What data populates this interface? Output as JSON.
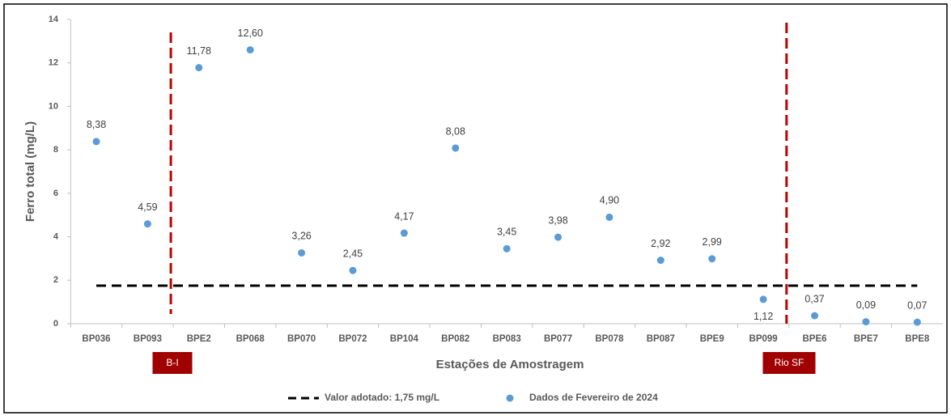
{
  "chart_data": {
    "type": "scatter",
    "y_label": "Ferro total (mg/L)",
    "x_label": "Estações de Amostragem",
    "categories": [
      "BP036",
      "BP093",
      "BPE2",
      "BP068",
      "BP070",
      "BP072",
      "BP104",
      "BP082",
      "BP083",
      "BP077",
      "BP078",
      "BP087",
      "BPE9",
      "BP099",
      "BPE6",
      "BPE7",
      "BPE8"
    ],
    "series": [
      {
        "name": "Dados de Fevereiro de 2024",
        "color": "#5b9bd5",
        "values": [
          8.38,
          4.59,
          11.78,
          12.6,
          3.26,
          2.45,
          4.17,
          8.08,
          3.45,
          3.98,
          4.9,
          2.92,
          2.99,
          1.12,
          0.37,
          0.09,
          0.07
        ],
        "value_labels": [
          "8,38",
          "4,59",
          "11,78",
          "12,60",
          "3,26",
          "2,45",
          "4,17",
          "8,08",
          "3,45",
          "3,98",
          "4,90",
          "2,92",
          "2,99",
          "1,12",
          "0,37",
          "0,09",
          "0,07"
        ]
      }
    ],
    "reference_line": {
      "name": "Valor adotado: 1,75 mg/L",
      "value": 1.75,
      "color": "#000000"
    },
    "annotations": [
      {
        "label": "B-I",
        "color": "#c00000"
      },
      {
        "label": "Rio SF",
        "color": "#c00000"
      }
    ],
    "ylim": [
      0,
      14
    ],
    "yticks": [
      0,
      2,
      4,
      6,
      8,
      10,
      12,
      14
    ],
    "grid": false,
    "legend": "bottom"
  }
}
